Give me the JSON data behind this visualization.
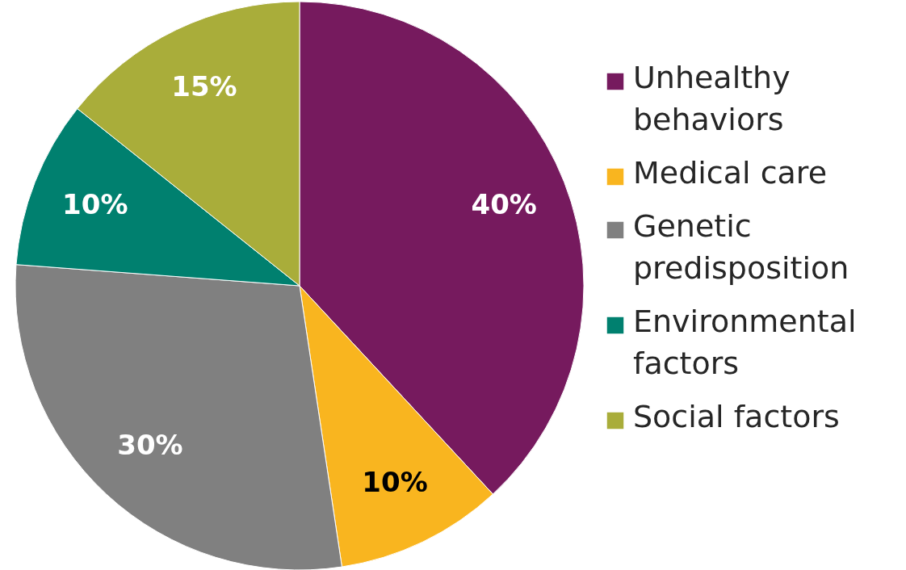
{
  "chart_data": {
    "type": "pie",
    "categories": [
      "Unhealthy behaviors",
      "Medical care",
      "Genetic predisposition",
      "Environmental factors",
      "Social factors"
    ],
    "values": [
      40,
      10,
      30,
      10,
      15
    ],
    "colors": [
      "#761a5e",
      "#f9b51f",
      "#808080",
      "#00806f",
      "#a9ad3a"
    ],
    "value_labels": [
      "40%",
      "10%",
      "30%",
      "10%",
      "15%"
    ],
    "legend": "right"
  }
}
